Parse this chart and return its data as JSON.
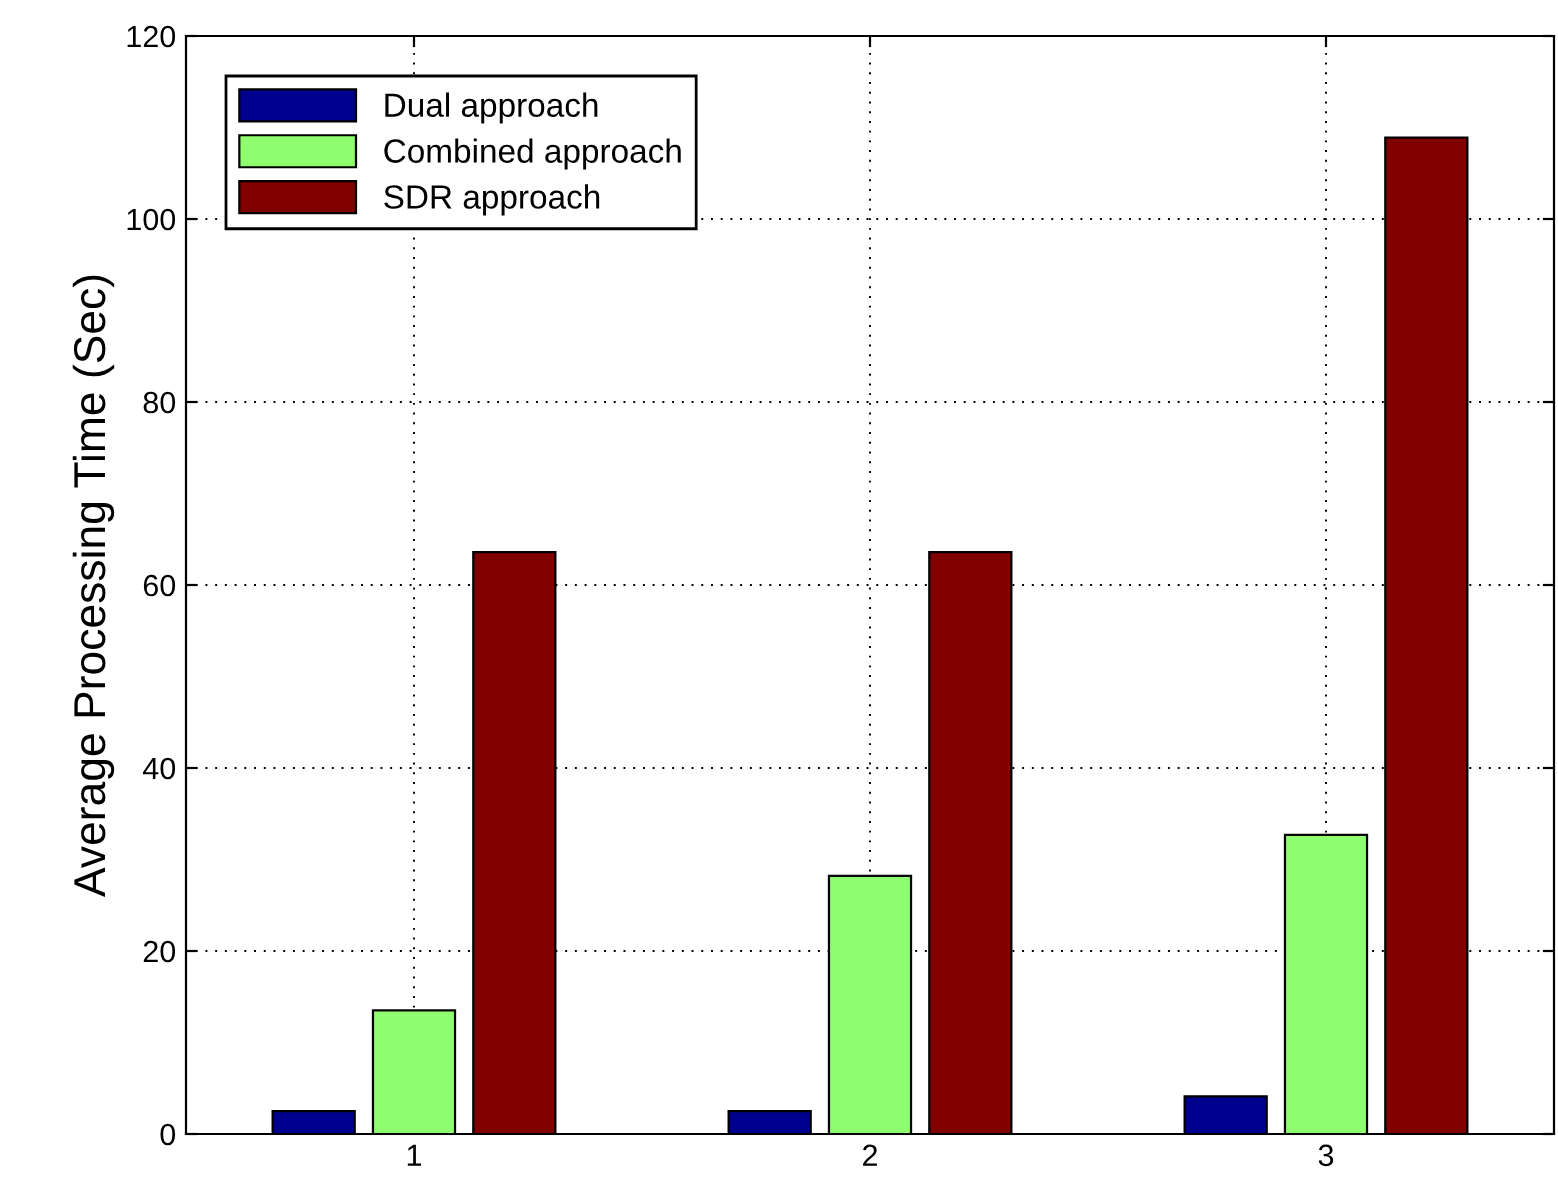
{
  "chart_data": {
    "type": "bar",
    "ylabel": "Average Processing Time (Sec)",
    "categories": [
      "1",
      "2",
      "3"
    ],
    "series": [
      {
        "name": "Dual approach",
        "color": "#00008f",
        "values": [
          2.5,
          2.5,
          4.1
        ]
      },
      {
        "name": "Combined approach",
        "color": "#8fff6f",
        "values": [
          13.5,
          28.2,
          32.7
        ]
      },
      {
        "name": "SDR approach",
        "color": "#800000",
        "values": [
          63.6,
          63.6,
          108.9
        ]
      }
    ],
    "ylim": [
      0,
      120
    ],
    "yticks": [
      0,
      20,
      40,
      60,
      80,
      100,
      120
    ],
    "grid": true,
    "legend": "top left"
  }
}
